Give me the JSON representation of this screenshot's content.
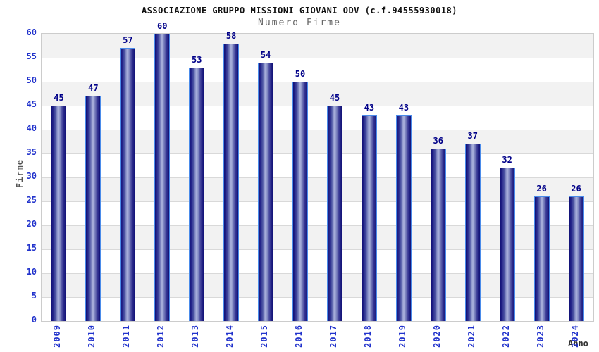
{
  "chart_data": {
    "type": "bar",
    "title": "ASSOCIAZIONE GRUPPO MISSIONI GIOVANI ODV (c.f.94555930018)",
    "subtitle": "Numero Firme",
    "xlabel": "Anno",
    "ylabel": "Firme",
    "categories": [
      "2009",
      "2010",
      "2011",
      "2012",
      "2013",
      "2014",
      "2015",
      "2016",
      "2017",
      "2018",
      "2019",
      "2020",
      "2021",
      "2022",
      "2023",
      "2024"
    ],
    "values": [
      45,
      47,
      57,
      60,
      53,
      58,
      54,
      50,
      45,
      43,
      43,
      36,
      37,
      32,
      26,
      26
    ],
    "ylim": [
      0,
      60
    ],
    "ytick_step": 5,
    "yticks": [
      0,
      5,
      10,
      15,
      20,
      25,
      30,
      35,
      40,
      45,
      50,
      55,
      60
    ],
    "grid": true,
    "legend": false,
    "band_fill": "alternating horizontal bands",
    "colors": {
      "tick_label": "#2233cc",
      "value_label": "#000088",
      "bar_dark": "#101076",
      "bar_light": "#adb4de",
      "bar_border": "#4a8bea",
      "band_gray": "#f2f2f2",
      "band_white": "#ffffff",
      "grid_line": "#d9d9d9",
      "plot_border": "#cccccc",
      "title_color": "#111111",
      "subtitle_color": "#666666",
      "axis_title_color": "#555555"
    }
  }
}
